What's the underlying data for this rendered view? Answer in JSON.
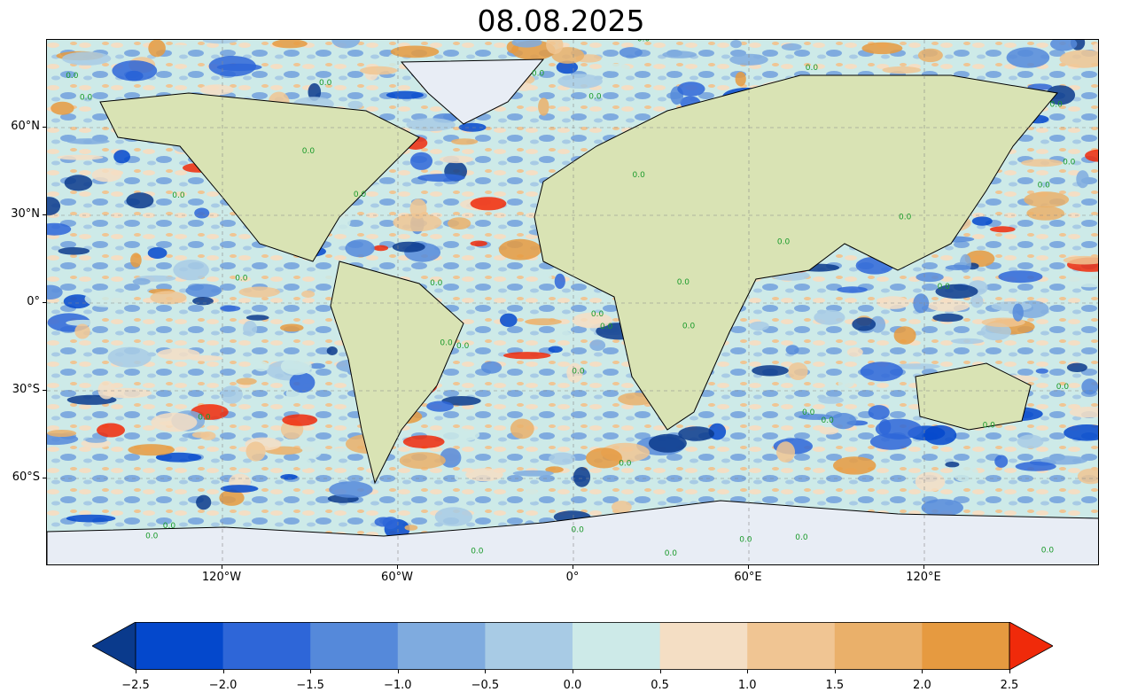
{
  "title": "08.08.2025",
  "y_ticks": [
    {
      "label": "60°N",
      "lat": 60
    },
    {
      "label": "30°N",
      "lat": 30
    },
    {
      "label": "0°",
      "lat": 0
    },
    {
      "label": "30°S",
      "lat": -30
    },
    {
      "label": "60°S",
      "lat": -60
    }
  ],
  "x_ticks": [
    {
      "label": "120°W",
      "lon": -120
    },
    {
      "label": "60°W",
      "lon": -60
    },
    {
      "label": "0°",
      "lon": 0
    },
    {
      "label": "60°E",
      "lon": 60
    },
    {
      "label": "120°E",
      "lon": 120
    }
  ],
  "extent": {
    "lon": [
      -180,
      180
    ],
    "lat": [
      -90,
      90
    ]
  },
  "contour_label": "0.0",
  "colorbar": {
    "ticks": [
      "−2.5",
      "−2.0",
      "−1.5",
      "−1.0",
      "−0.5",
      "0.0",
      "0.5",
      "1.0",
      "1.5",
      "2.0",
      "2.5"
    ],
    "range": [
      -2.5,
      2.5
    ],
    "extend": "both",
    "under_color": "#0a3a8c",
    "over_color": "#f02a0a",
    "colors": [
      "#0448cc",
      "#2e66d8",
      "#5589da",
      "#7fabdf",
      "#a8cbe5",
      "#cdeae8",
      "#f4dec4",
      "#f0c593",
      "#eab06a",
      "#e69a40"
    ]
  },
  "land_color": "#d9e3b4",
  "ice_color": "#e8edf5"
}
